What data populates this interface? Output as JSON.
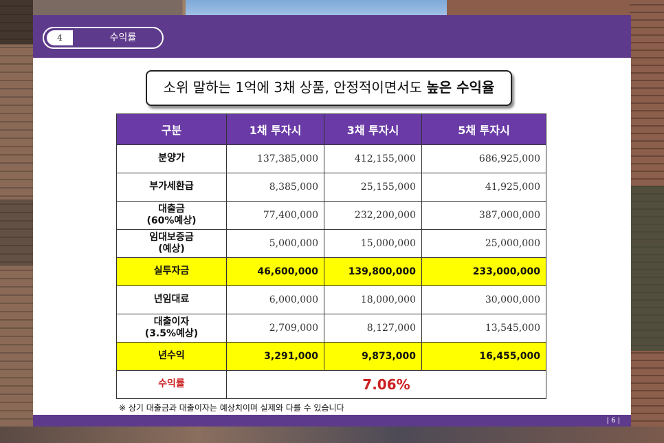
{
  "section": {
    "number": "4",
    "title": "수익률"
  },
  "headline": {
    "prefix": "소위 말하는 1억에 3채 상품, 안정적이면서도 ",
    "emphasis": "높은 수익율"
  },
  "table": {
    "headers": [
      "구분",
      "1채 투자시",
      "3채 투자시",
      "5채 투자시"
    ],
    "rows": [
      {
        "label": "분양가",
        "values": [
          "137,385,000",
          "412,155,000",
          "686,925,000"
        ]
      },
      {
        "label": "부가세환급",
        "values": [
          "8,385,000",
          "25,155,000",
          "41,925,000"
        ]
      },
      {
        "label": "대출금\n(60%예상)",
        "values": [
          "77,400,000",
          "232,200,000",
          "387,000,000"
        ]
      },
      {
        "label": "임대보증금\n(예상)",
        "values": [
          "5,000,000",
          "15,000,000",
          "25,000,000"
        ]
      },
      {
        "label": "실투자금",
        "values": [
          "46,600,000",
          "139,800,000",
          "233,000,000"
        ]
      },
      {
        "label": "년임대료",
        "values": [
          "6,000,000",
          "18,000,000",
          "30,000,000"
        ]
      },
      {
        "label": "대출이자\n(3.5%예상)",
        "values": [
          "2,709,000",
          "8,127,000",
          "13,545,000"
        ]
      },
      {
        "label": "년수익",
        "values": [
          "3,291,000",
          "9,873,000",
          "16,455,000"
        ]
      }
    ],
    "rate": {
      "label": "수익률",
      "value": "7.06%"
    }
  },
  "footnote": "※ 상기 대출금과 대출이자는 예상치이며 실제와 다를 수 있습니다",
  "page_number": "| 6 |",
  "colors": {
    "accent": "#5e3a8c",
    "header": "#6a3aa6",
    "highlight": "#ffff00",
    "rate": "#cc1f1f"
  }
}
